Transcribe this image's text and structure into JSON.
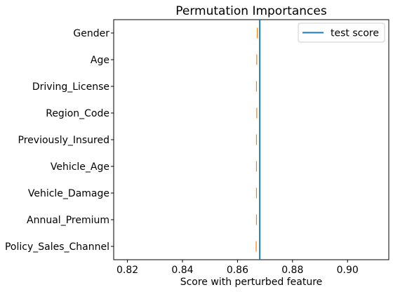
{
  "chart_data": {
    "type": "boxplot",
    "title": "Permutation Importances",
    "xlabel": "Score with perturbed feature",
    "ylabel": "",
    "xlim": [
      0.815,
      0.915
    ],
    "xticks": [
      "0.82",
      "0.84",
      "0.86",
      "0.88",
      "0.90"
    ],
    "categories": [
      "Gender",
      "Age",
      "Driving_License",
      "Region_Code",
      "Previously_Insured",
      "Vehicle_Age",
      "Vehicle_Damage",
      "Annual_Premium",
      "Policy_Sales_Channel"
    ],
    "values": [
      0.8672,
      0.867,
      0.8669,
      0.867,
      0.8669,
      0.8669,
      0.8669,
      0.8669,
      0.8668
    ],
    "reference_line": {
      "name": "test score",
      "value": 0.8681,
      "color": "#1f77b4"
    },
    "median_color": "#ff7f0e",
    "grid": false,
    "legend": {
      "position": "top-right",
      "entries": [
        "test score"
      ]
    }
  }
}
